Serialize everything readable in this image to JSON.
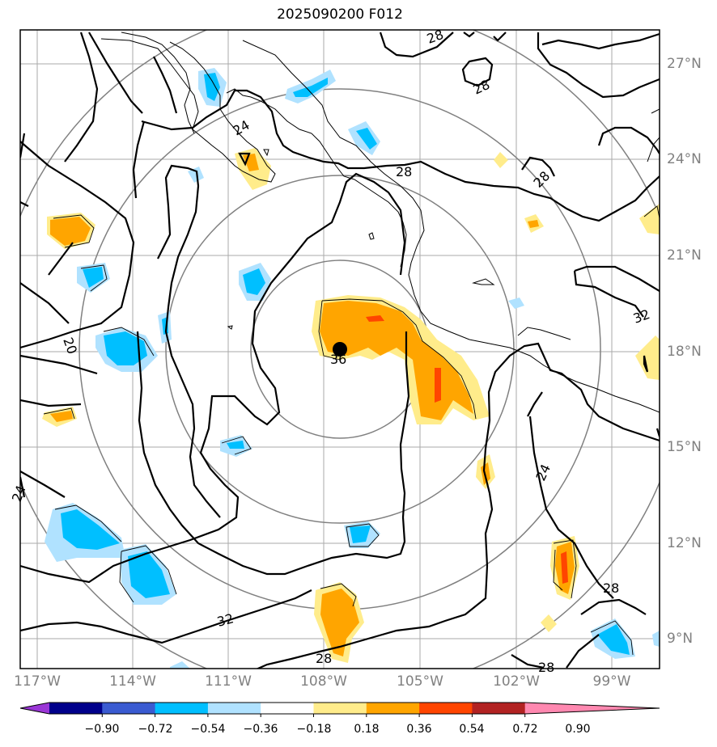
{
  "title": "2025090200 F012",
  "lon_labels": [
    "117°W",
    "114°W",
    "111°W",
    "108°W",
    "105°W",
    "102°W",
    "99°W"
  ],
  "lat_labels": [
    "27°N",
    "24°N",
    "21°N",
    "18°N",
    "15°N",
    "12°N",
    "9°N"
  ],
  "colorbar": {
    "ticks": [
      "−0.90",
      "−0.72",
      "−0.54",
      "−0.36",
      "−0.18",
      "0.18",
      "0.36",
      "0.54",
      "0.72",
      "0.90"
    ],
    "colors": [
      "#9a36d6",
      "#00008b",
      "#3a5bd1",
      "#00bfff",
      "#b0e2ff",
      "#ffffff",
      "#ffec8b",
      "#ffa500",
      "#ff4500",
      "#b22222",
      "#ff88b0"
    ]
  },
  "contour_labels": [
    "28",
    "28",
    "28",
    "28",
    "24",
    "24",
    "24",
    "20",
    "32",
    "32",
    "28",
    "28",
    "36",
    "28"
  ],
  "storm": {
    "lat": 18.0,
    "lon": -107.6,
    "label": "36"
  }
}
